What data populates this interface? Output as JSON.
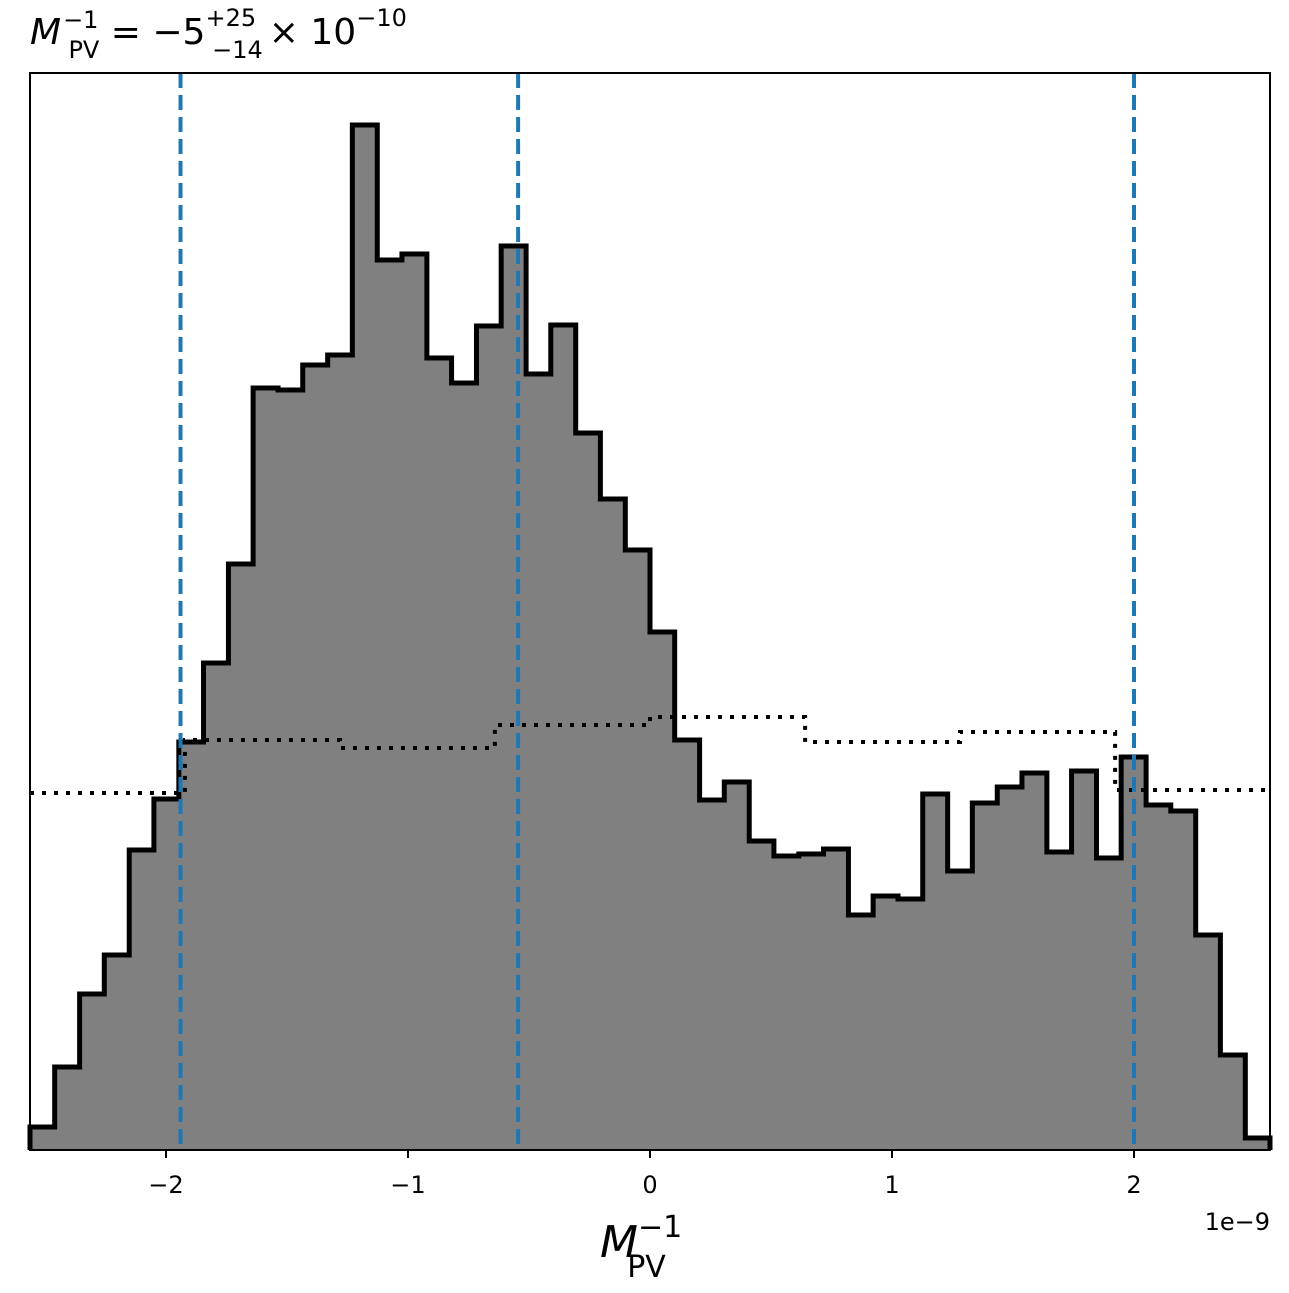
{
  "chart_data": {
    "type": "histogram",
    "title": {
      "symbol": "M",
      "sub": "PV",
      "sup": "−1",
      "eq": " = −5",
      "plus": "+25",
      "minus": "−14",
      "times": "× 10",
      "exp": "−10"
    },
    "x_label": {
      "symbol": "M",
      "sub": "PV",
      "sup": "−1"
    },
    "x_offset_label": "1e−9",
    "xlim": [
      -2.562,
      2.562
    ],
    "ylim": [
      0,
      107.7
    ],
    "xticks": [
      {
        "value": -2,
        "label": "−2"
      },
      {
        "value": -1,
        "label": "−1"
      },
      0,
      1,
      2
    ],
    "bins": [
      -2.562,
      -2.46,
      -2.357,
      -2.255,
      -2.152,
      -2.05,
      -1.947,
      -1.845,
      -1.742,
      -1.64,
      -1.537,
      -1.435,
      -1.332,
      -1.23,
      -1.127,
      -1.025,
      -0.922,
      -0.82,
      -0.717,
      -0.615,
      -0.512,
      -0.41,
      -0.307,
      -0.205,
      -0.102,
      0.0,
      0.102,
      0.205,
      0.307,
      0.41,
      0.512,
      0.615,
      0.717,
      0.82,
      0.922,
      1.025,
      1.127,
      1.23,
      1.332,
      1.435,
      1.537,
      1.64,
      1.742,
      1.845,
      1.947,
      2.05,
      2.152,
      2.255,
      2.357,
      2.46,
      2.562
    ],
    "counts": [
      2.3,
      8.3,
      15.6,
      19.5,
      30,
      35.1,
      40.8,
      48.7,
      58.6,
      76.2,
      76,
      78.5,
      79.5,
      102.5,
      89,
      89.6,
      79.2,
      76.7,
      82.4,
      90.4,
      77.6,
      82.5,
      71.7,
      65.1,
      60,
      51.8,
      41,
      35,
      36.8,
      30.9,
      29.4,
      29.6,
      30.1,
      23.5,
      25.4,
      25.1,
      35.6,
      27.9,
      34.7,
      36.3,
      37.7,
      29.8,
      37.9,
      29.2,
      39.3,
      34.5,
      33.9,
      21.5,
      9.5,
      1.2
    ],
    "color": "#808080",
    "prior_bins": [
      -2.562,
      -1.922,
      -1.281,
      -0.641,
      0,
      0.641,
      1.281,
      1.922,
      2.562
    ],
    "prior_counts": [
      35.7,
      41,
      40.2,
      42.5,
      43.3,
      40.8,
      41.8,
      36
    ],
    "quantiles": [
      -1.94,
      -0.545,
      2.0
    ],
    "quantile_color": "#1f77b4"
  }
}
